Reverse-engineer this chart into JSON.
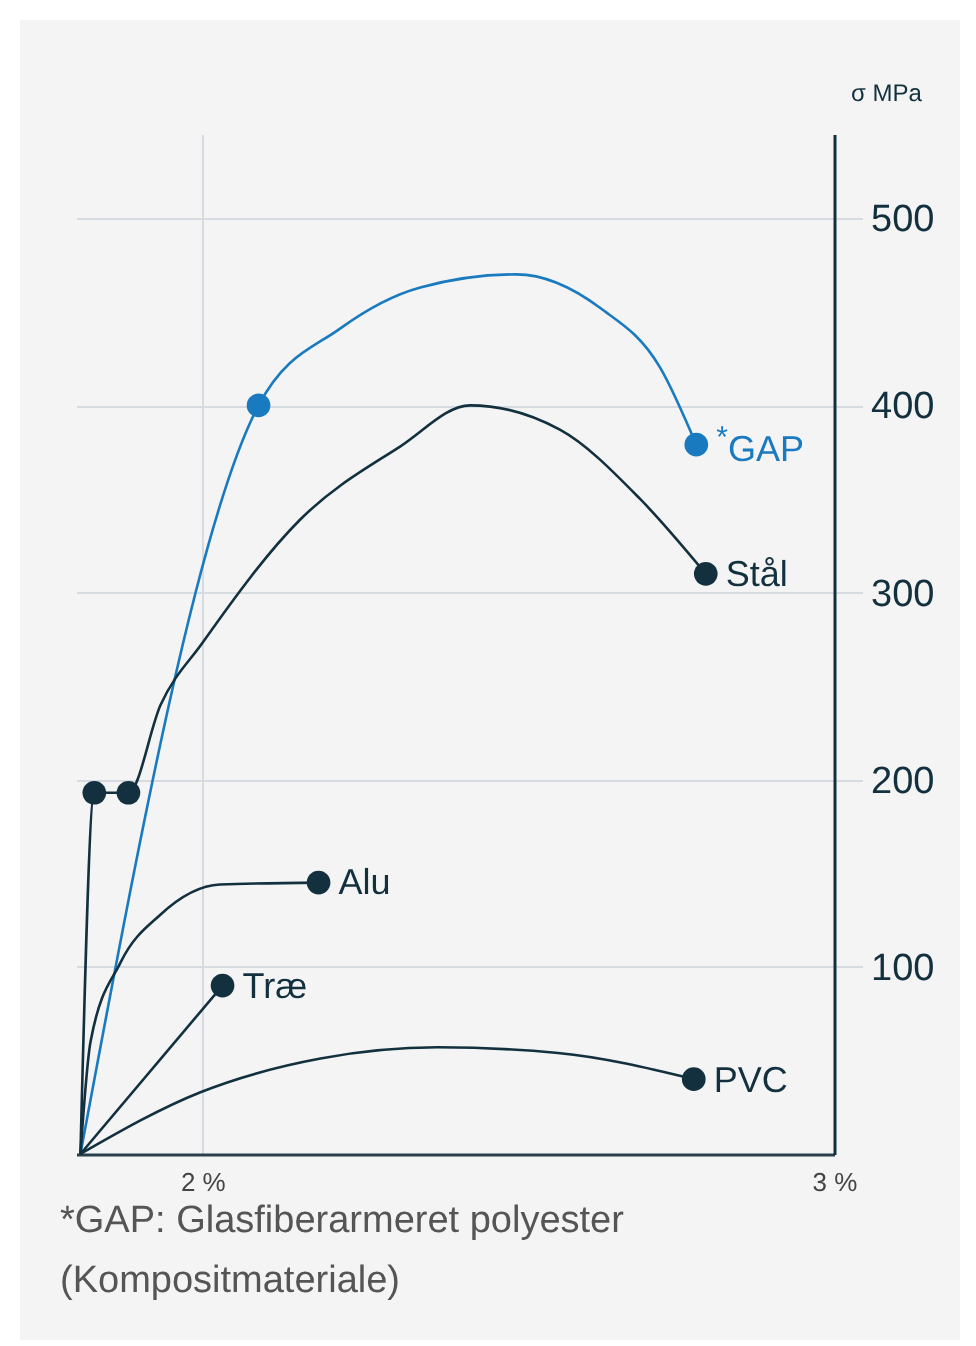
{
  "chart_data": {
    "type": "line",
    "ylabel": "σ MPa",
    "xlim": [
      1.8,
      3.0
    ],
    "xticks": [
      {
        "value": 2,
        "label": "2 %"
      },
      {
        "value": 3,
        "label": "3 %"
      }
    ],
    "ylim": [
      0,
      545
    ],
    "yticks": [
      100,
      200,
      300,
      400,
      500
    ],
    "grid": true,
    "series": [
      {
        "name": "$^{*}$GAP",
        "color": "#1a7abf",
        "x": [
          1.807,
          2.089,
          2.218,
          2.345,
          2.497,
          2.63,
          2.725,
          2.782
        ],
        "values": [
          0,
          400,
          441,
          463,
          470,
          452,
          420,
          379
        ]
      },
      {
        "name": "Stål",
        "color": "#13303f",
        "x": [
          1.807,
          1.829,
          1.883,
          1.934,
          2.0,
          2.155,
          2.313,
          2.424,
          2.566,
          2.693,
          2.797
        ],
        "values": [
          0,
          193,
          193,
          240,
          273,
          339,
          378,
          400,
          387,
          350,
          310
        ]
      },
      {
        "name": "Alu",
        "color": "#13303f",
        "x": [
          1.807,
          1.823,
          1.87,
          1.934,
          2.028,
          2.184
        ],
        "values": [
          0,
          60,
          102,
          128,
          144,
          145
        ]
      },
      {
        "name": "Træ",
        "color": "#13303f",
        "x": [
          1.807,
          2.032
        ],
        "values": [
          0,
          90
        ]
      },
      {
        "name": "PVC",
        "color": "#13303f",
        "x": [
          1.807,
          1.997,
          2.187,
          2.373,
          2.563,
          2.778
        ],
        "values": [
          0,
          33,
          51,
          57,
          54,
          40
        ]
      },
      {
        "type": "scatter",
        "color": "#1a7abf",
        "x": [
          2.089,
          2.782
        ],
        "values": [
          400,
          379
        ]
      },
      {
        "type": "scatter",
        "color": "#13303f",
        "x": [
          1.829,
          1.883,
          2.797,
          2.184,
          2.032,
          2.778
        ],
        "values": [
          193,
          193,
          310,
          145,
          90,
          40
        ]
      }
    ],
    "annotations": [
      "*GAP: Glasfiberarmeret polyester (Kompositmateriale)"
    ]
  }
}
